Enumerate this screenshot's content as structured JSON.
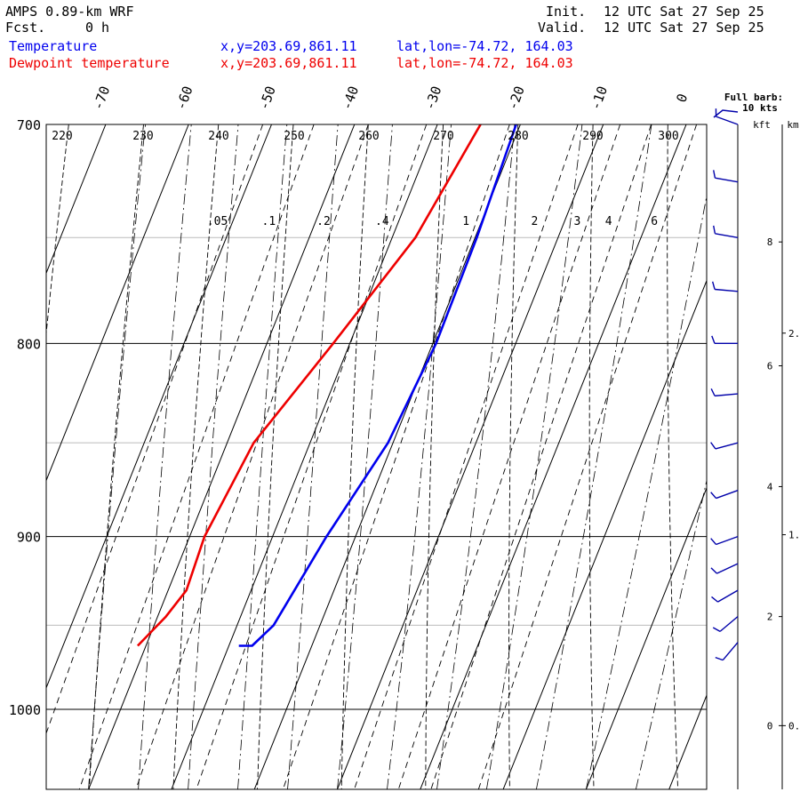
{
  "header": {
    "model": "AMPS 0.89-km WRF",
    "fcst_label": "Fcst.",
    "fcst_value": "0 h",
    "init_label": "Init.",
    "init_value": "12 UTC Sat 27 Sep 25",
    "valid_label": "Valid.",
    "valid_value": "12 UTC Sat 27 Sep 25"
  },
  "legend": [
    {
      "name": "Temperature",
      "xy": "x,y=203.69,861.11",
      "latlon": "lat,lon=-74.72, 164.03",
      "color": "#0000ee"
    },
    {
      "name": "Dewpoint temperature",
      "xy": "x,y=203.69,861.11",
      "latlon": "lat,lon=-74.72, 164.03",
      "color": "#ee0000"
    }
  ],
  "barb_title": [
    "Full barb:",
    "10 kts"
  ],
  "height_units": [
    "kft",
    "km"
  ],
  "chart_data": {
    "type": "line",
    "skew_t_log_p": true,
    "plim": [
      700,
      1050
    ],
    "temp_ticks": [
      -70,
      -60,
      -50,
      -40,
      -30,
      -20,
      -10,
      0
    ],
    "temp_tick_labels": [
      "-70",
      "-60",
      "-50",
      "-40",
      "-30",
      "-20",
      "-10",
      "0"
    ],
    "pressure_ticks": [
      700,
      800,
      900,
      1000
    ],
    "pressure_labels": [
      "700",
      "800",
      "900",
      "1000"
    ],
    "thin_pressure_lines": [
      750,
      850,
      950
    ],
    "theta_labels": [
      "220",
      "230",
      "240",
      "250",
      "260",
      "270",
      "280",
      "290",
      "300"
    ],
    "mixing_ratio_labels": [
      ".05",
      ".1",
      ".2",
      ".4",
      "1",
      "2",
      "3",
      "4",
      "6"
    ],
    "kft_ticks": [
      {
        "label": "8",
        "p": 752
      },
      {
        "label": "6",
        "p": 811
      },
      {
        "label": "4",
        "p": 873
      },
      {
        "label": "2",
        "p": 945
      },
      {
        "label": "0",
        "p": 1010
      }
    ],
    "km_ticks": [
      {
        "label": "2.",
        "p": 795
      },
      {
        "label": "1.",
        "p": 899
      },
      {
        "label": "0.",
        "p": 1010
      }
    ],
    "series": [
      {
        "name": "Temperature",
        "color": "#0000ee",
        "points": [
          {
            "p": 700,
            "t": -20.5
          },
          {
            "p": 750,
            "t": -19.8
          },
          {
            "p": 800,
            "t": -19.6
          },
          {
            "p": 850,
            "t": -20.6
          },
          {
            "p": 900,
            "t": -23.5
          },
          {
            "p": 950,
            "t": -25.6
          },
          {
            "p": 962,
            "t": -27.2
          },
          {
            "p": 962,
            "t": -28.8
          }
        ]
      },
      {
        "name": "Dewpoint temperature",
        "color": "#ee0000",
        "points": [
          {
            "p": 700,
            "t": -24.8
          },
          {
            "p": 750,
            "t": -27.2
          },
          {
            "p": 800,
            "t": -32.0
          },
          {
            "p": 850,
            "t": -36.8
          },
          {
            "p": 900,
            "t": -38.2
          },
          {
            "p": 930,
            "t": -37.8
          },
          {
            "p": 945,
            "t": -39.0
          },
          {
            "p": 962,
            "t": -41.0
          }
        ]
      }
    ],
    "wind_barbs": [
      {
        "p": 700,
        "dir": 290,
        "kts": 10
      },
      {
        "p": 725,
        "dir": 280,
        "kts": 10
      },
      {
        "p": 750,
        "dir": 280,
        "kts": 10
      },
      {
        "p": 775,
        "dir": 275,
        "kts": 10
      },
      {
        "p": 800,
        "dir": 270,
        "kts": 10
      },
      {
        "p": 825,
        "dir": 265,
        "kts": 10
      },
      {
        "p": 850,
        "dir": 255,
        "kts": 10
      },
      {
        "p": 875,
        "dir": 250,
        "kts": 10
      },
      {
        "p": 900,
        "dir": 250,
        "kts": 10
      },
      {
        "p": 915,
        "dir": 245,
        "kts": 10
      },
      {
        "p": 930,
        "dir": 240,
        "kts": 10
      },
      {
        "p": 945,
        "dir": 230,
        "kts": 10
      },
      {
        "p": 960,
        "dir": 220,
        "kts": 10
      }
    ]
  }
}
